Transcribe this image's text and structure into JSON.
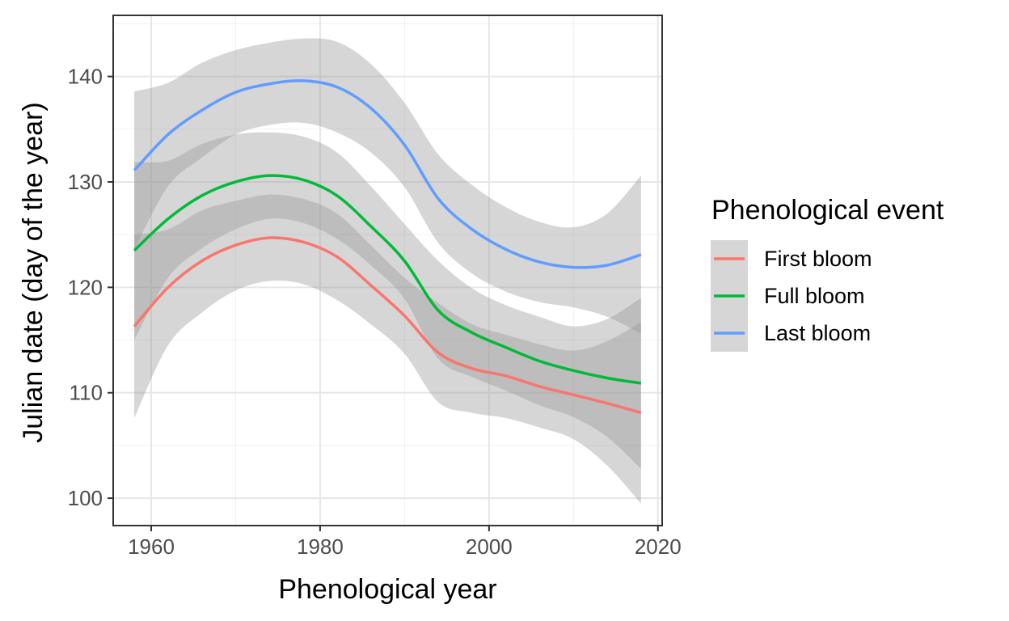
{
  "chart_data": {
    "type": "line",
    "xlabel": "Phenological year",
    "ylabel": "Julian date (day of the year)",
    "xlim": [
      1955.5,
      2020.5
    ],
    "ylim": [
      97.4,
      145.8
    ],
    "x_ticks": [
      1960,
      1980,
      2000,
      2020
    ],
    "x_tick_labels": [
      "1960",
      "1980",
      "2000",
      "2020"
    ],
    "x_minor_ticks": [
      1970,
      1990,
      2010
    ],
    "y_ticks": [
      100,
      110,
      120,
      130,
      140
    ],
    "y_tick_labels": [
      "100",
      "110",
      "120",
      "130",
      "140"
    ],
    "y_minor_ticks": [
      105,
      115,
      125,
      135,
      145
    ],
    "grid": true,
    "legend": {
      "title": "Phenological event",
      "position": "right"
    },
    "band_color": "#999999",
    "x": [
      1958,
      1962,
      1966,
      1970,
      1974,
      1978,
      1982,
      1986,
      1990,
      1994,
      1998,
      2002,
      2006,
      2010,
      2014,
      2018
    ],
    "series": [
      {
        "name": "First bloom",
        "color": "#F8766D",
        "values": [
          116.3,
          120.0,
          122.5,
          124.0,
          124.7,
          124.3,
          122.9,
          120.2,
          117.3,
          113.8,
          112.3,
          111.6,
          110.6,
          109.8,
          109.0,
          108.1
        ],
        "lower": [
          107.6,
          114.5,
          117.6,
          119.7,
          120.6,
          120.3,
          118.8,
          116.5,
          113.7,
          109.1,
          108.1,
          107.6,
          106.7,
          105.6,
          103.1,
          99.5
        ],
        "upper": [
          125.0,
          125.5,
          127.3,
          128.2,
          128.8,
          128.4,
          127.0,
          124.0,
          120.9,
          118.5,
          116.5,
          115.5,
          114.6,
          114.0,
          114.9,
          116.7
        ]
      },
      {
        "name": "Full bloom",
        "color": "#00BA38",
        "values": [
          123.5,
          126.5,
          128.7,
          130.0,
          130.6,
          130.2,
          128.7,
          125.8,
          122.5,
          117.8,
          115.7,
          114.3,
          113.0,
          112.1,
          111.4,
          110.9
        ],
        "lower": [
          115.0,
          120.9,
          123.7,
          125.5,
          126.5,
          126.1,
          124.6,
          122.1,
          118.9,
          113.2,
          111.5,
          110.2,
          108.8,
          107.7,
          105.8,
          102.8
        ],
        "upper": [
          131.9,
          132.0,
          133.6,
          134.5,
          134.7,
          134.3,
          132.8,
          129.6,
          126.0,
          122.5,
          119.9,
          118.3,
          117.2,
          116.3,
          117.0,
          119.0
        ]
      },
      {
        "name": "Last bloom",
        "color": "#619CFF",
        "values": [
          131.1,
          134.5,
          136.8,
          138.5,
          139.3,
          139.6,
          139.0,
          137.0,
          133.5,
          128.4,
          125.5,
          123.6,
          122.4,
          121.9,
          122.1,
          123.1
        ],
        "lower": [
          123.6,
          129.6,
          132.3,
          134.5,
          135.4,
          135.6,
          134.7,
          132.8,
          129.5,
          124.2,
          121.3,
          119.6,
          118.6,
          118.1,
          117.2,
          115.6
        ],
        "upper": [
          138.6,
          139.4,
          141.3,
          142.5,
          143.2,
          143.6,
          143.3,
          141.2,
          137.5,
          132.6,
          129.7,
          127.6,
          126.2,
          125.7,
          127.0,
          130.6
        ]
      }
    ]
  }
}
